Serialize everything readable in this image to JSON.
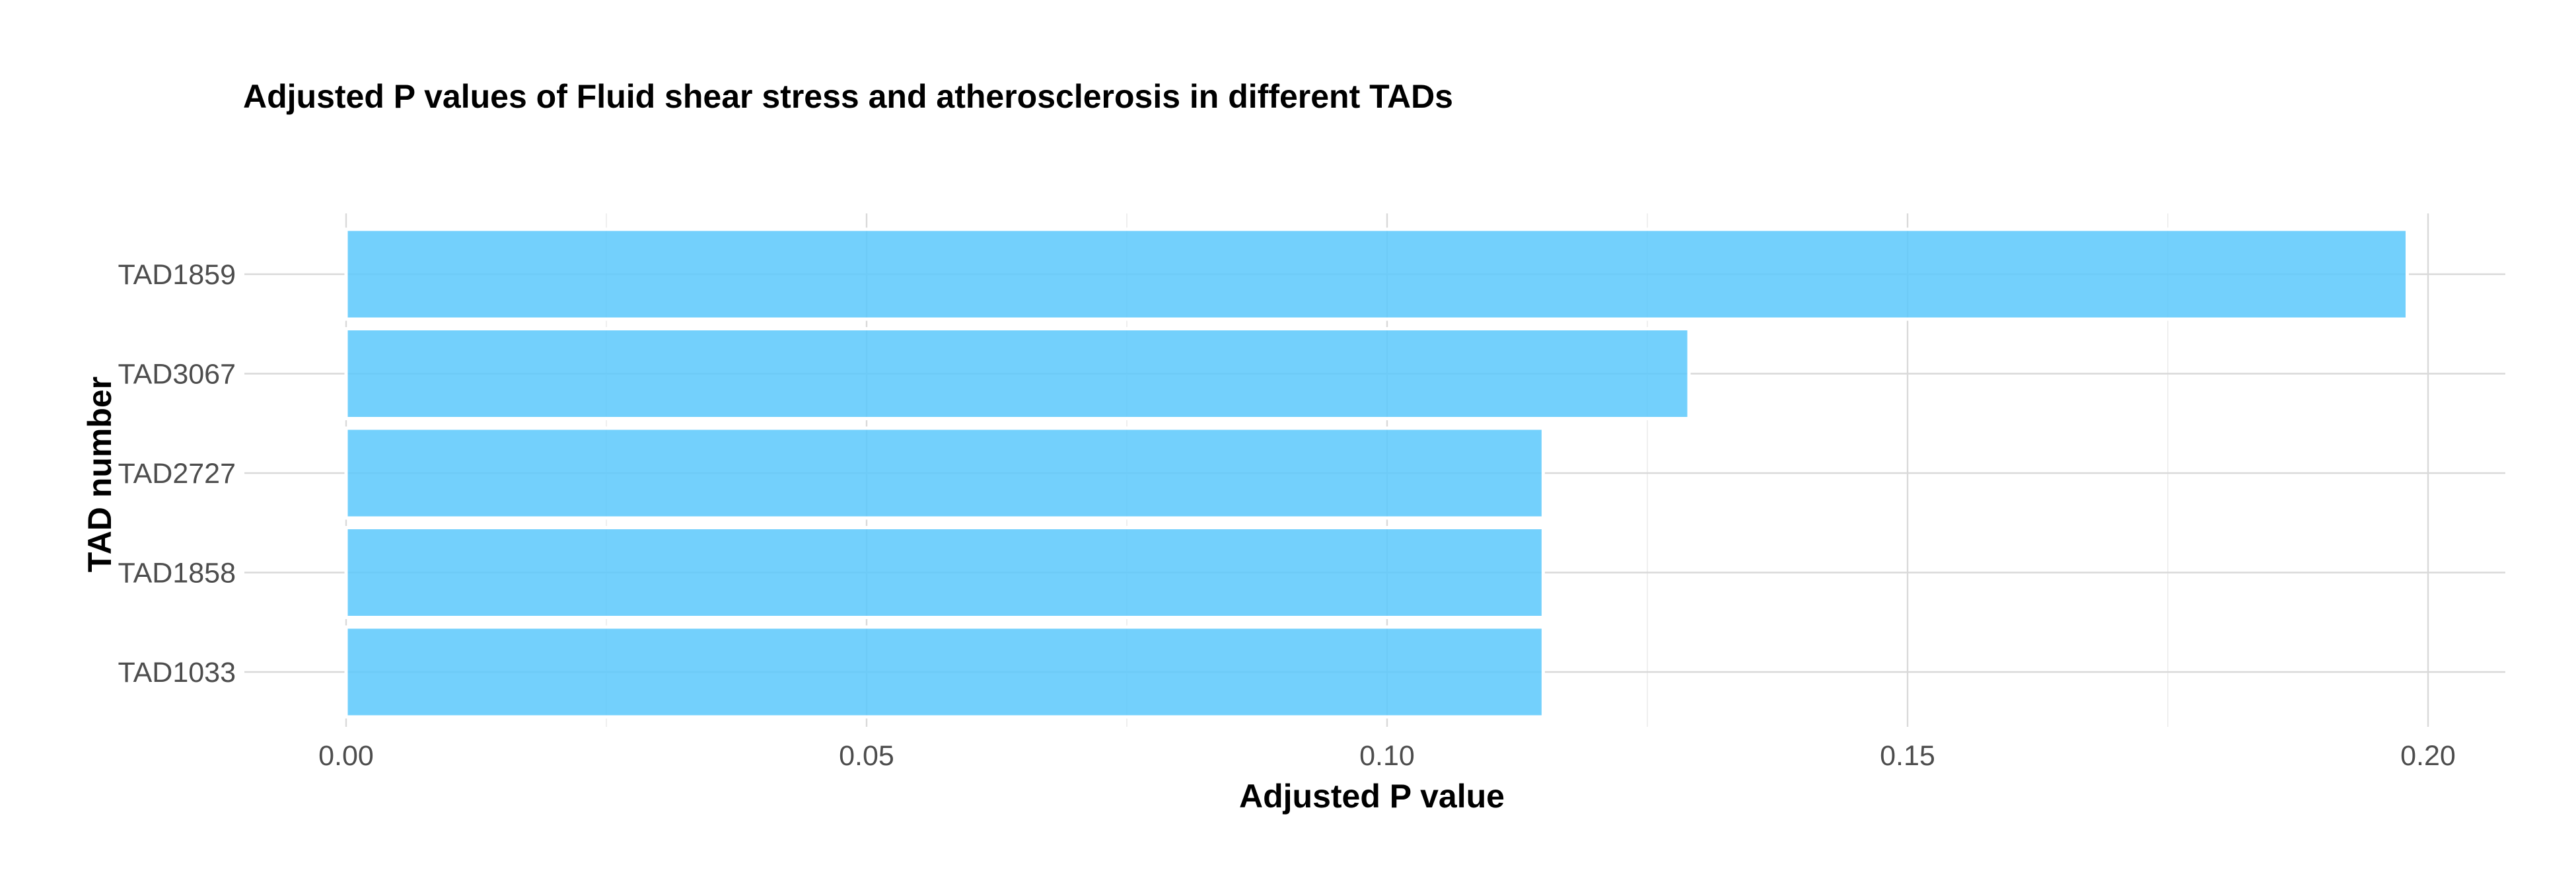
{
  "chart_data": {
    "type": "bar",
    "orientation": "horizontal",
    "title": "Adjusted P values of Fluid shear stress and atherosclerosis in different TADs",
    "xlabel": "Adjusted P value",
    "ylabel": "TAD number",
    "categories": [
      "TAD1859",
      "TAD3067",
      "TAD2727",
      "TAD1858",
      "TAD1033"
    ],
    "values": [
      0.198,
      0.129,
      0.115,
      0.115,
      0.115
    ],
    "xlim": [
      0,
      0.208
    ],
    "xticks": [
      "0.00",
      "0.05",
      "0.10",
      "0.15",
      "0.20"
    ],
    "grid": true,
    "legend": "none",
    "bar_color": "#5bc8fb"
  }
}
